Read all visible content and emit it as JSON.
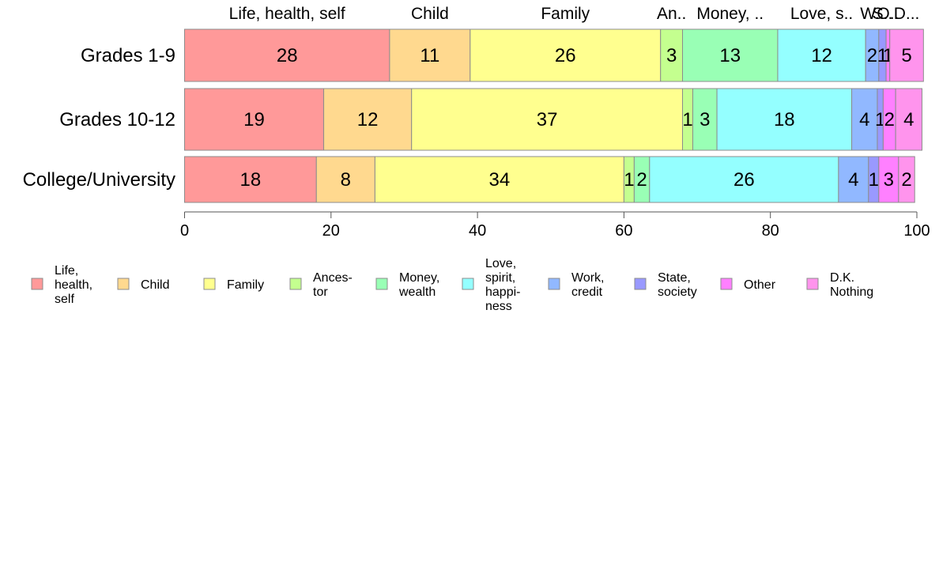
{
  "chart_data": {
    "type": "bar",
    "orientation": "horizontal",
    "stacked": true,
    "categories": [
      "Grades 1-9",
      "Grades 10-12",
      "College/University"
    ],
    "xlim": [
      0,
      100
    ],
    "x_ticks": [
      0,
      20,
      40,
      60,
      80,
      100
    ],
    "grid": false,
    "legend_position": "bottom",
    "top_labels": [
      "Life, health, self",
      "Child",
      "Family",
      "An..",
      "Money, ..",
      "Love, s..",
      "W..",
      "S..",
      "O..",
      "D..."
    ],
    "series": [
      {
        "name": "Life, health, self",
        "legend_lines": [
          "Life,",
          "health,",
          "self"
        ],
        "color": "#ff9999",
        "values": [
          28,
          19,
          18
        ],
        "display": [
          "28",
          "19",
          "18"
        ]
      },
      {
        "name": "Child",
        "legend_lines": [
          "Child"
        ],
        "color": "#ffd98f",
        "values": [
          11,
          12,
          8
        ],
        "display": [
          "11",
          "12",
          "8"
        ]
      },
      {
        "name": "Family",
        "legend_lines": [
          "Family"
        ],
        "color": "#ffff8f",
        "values": [
          26,
          37,
          34
        ],
        "display": [
          "26",
          "37",
          "34"
        ]
      },
      {
        "name": "Ancestor",
        "legend_lines": [
          "Ances-",
          "tor"
        ],
        "color": "#c4ff8f",
        "values": [
          3,
          1.4,
          1.4
        ],
        "display": [
          "3",
          "1",
          "1"
        ]
      },
      {
        "name": "Money, wealth",
        "legend_lines": [
          "Money,",
          "wealth"
        ],
        "color": "#99ffb5",
        "values": [
          13,
          3.3,
          2.1
        ],
        "display": [
          "13",
          "3",
          "2"
        ]
      },
      {
        "name": "Love, spirit, happiness",
        "legend_lines": [
          "Love,",
          "spirit,",
          "happi-",
          "ness"
        ],
        "color": "#94ffff",
        "values": [
          12,
          18.4,
          25.8
        ],
        "display": [
          "12",
          "18",
          "26"
        ]
      },
      {
        "name": "Work, credit",
        "legend_lines": [
          "Work,",
          "credit"
        ],
        "color": "#91b8ff",
        "values": [
          1.8,
          3.5,
          4.1
        ],
        "display": [
          "2",
          "4",
          "4"
        ]
      },
      {
        "name": "State, society",
        "legend_lines": [
          "State,",
          "society"
        ],
        "color": "#9999ff",
        "values": [
          1,
          0.8,
          1.4
        ],
        "display": [
          "1",
          "1",
          "1"
        ]
      },
      {
        "name": "Other",
        "legend_lines": [
          "Other"
        ],
        "color": "#ff80ff",
        "values": [
          0.5,
          1.7,
          2.7
        ],
        "display": [
          "1",
          "2",
          "3"
        ]
      },
      {
        "name": "D.K. Nothing",
        "legend_lines": [
          "D.K.",
          "Nothing"
        ],
        "color": "#ff94ed",
        "values": [
          4.6,
          3.6,
          2.2
        ],
        "display": [
          "5",
          "4",
          "2"
        ]
      }
    ]
  }
}
